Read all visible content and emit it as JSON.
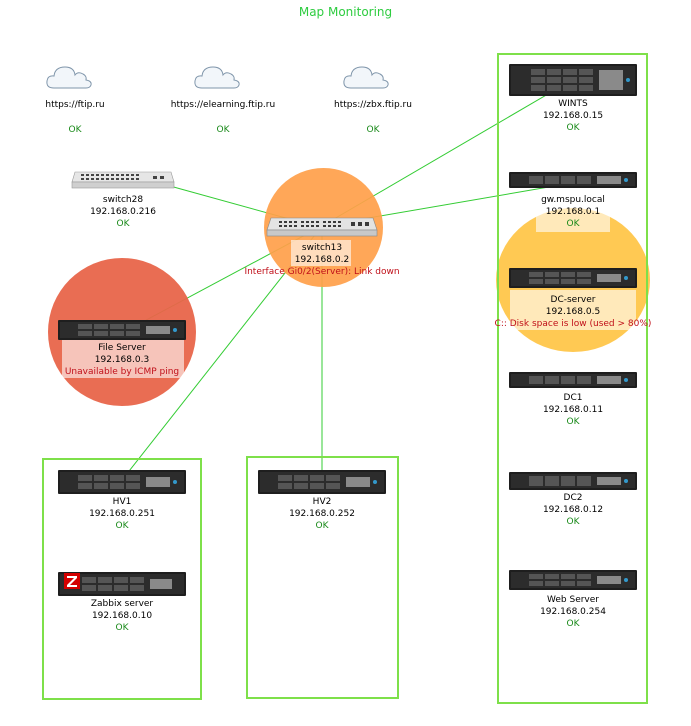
{
  "map_title": "Map Monitoring",
  "colors": {
    "ok": "#1a8a1a",
    "problem": "#c0101a",
    "link": "#33cc33",
    "group_border": "#7ee04a",
    "halo_high": "#e8654a",
    "halo_avg": "#ff9f4a",
    "halo_warn": "#ffc64a"
  },
  "services": [
    {
      "url": "https://ftip.ru",
      "status": "OK",
      "icon": "cloud-icon"
    },
    {
      "url": "https://elearning.ftip.ru",
      "status": "OK",
      "icon": "cloud-icon"
    },
    {
      "url": "https://zbx.ftip.ru",
      "status": "OK",
      "icon": "cloud-icon"
    }
  ],
  "switches": {
    "switch28": {
      "name": "switch28",
      "ip": "192.168.0.216",
      "status": "OK",
      "icon": "switch-icon"
    },
    "switch13": {
      "name": "switch13",
      "ip": "192.168.0.2",
      "status": "Interface Gi0/2(Server): Link down",
      "icon": "switch-icon"
    }
  },
  "file_server": {
    "name": "File Server",
    "ip": "192.168.0.3",
    "status": "Unavailable by ICMP ping",
    "icon": "server-icon"
  },
  "hv_group": [
    {
      "name": "HV1",
      "ip": "192.168.0.251",
      "status": "OK",
      "icon": "server-icon"
    },
    {
      "name": "Zabbix server",
      "ip": "192.168.0.10",
      "status": "OK",
      "icon": "zabbix-server-icon"
    }
  ],
  "hv2": {
    "name": "HV2",
    "ip": "192.168.0.252",
    "status": "OK",
    "icon": "server-icon"
  },
  "right_group": [
    {
      "name": "WINTS",
      "ip": "192.168.0.15",
      "status": "OK",
      "icon": "server-icon"
    },
    {
      "name": "gw.mspu.local",
      "ip": "192.168.0.1",
      "status": "OK",
      "icon": "server-icon"
    },
    {
      "name": "DC-server",
      "ip": "192.168.0.5",
      "status": "C:: Disk space is low (used > 80%)",
      "icon": "server-icon"
    },
    {
      "name": "DC1",
      "ip": "192.168.0.11",
      "status": "OK",
      "icon": "server-icon"
    },
    {
      "name": "DC2",
      "ip": "192.168.0.12",
      "status": "OK",
      "icon": "server-icon"
    },
    {
      "name": "Web Server",
      "ip": "192.168.0.254",
      "status": "OK",
      "icon": "server-icon"
    }
  ]
}
